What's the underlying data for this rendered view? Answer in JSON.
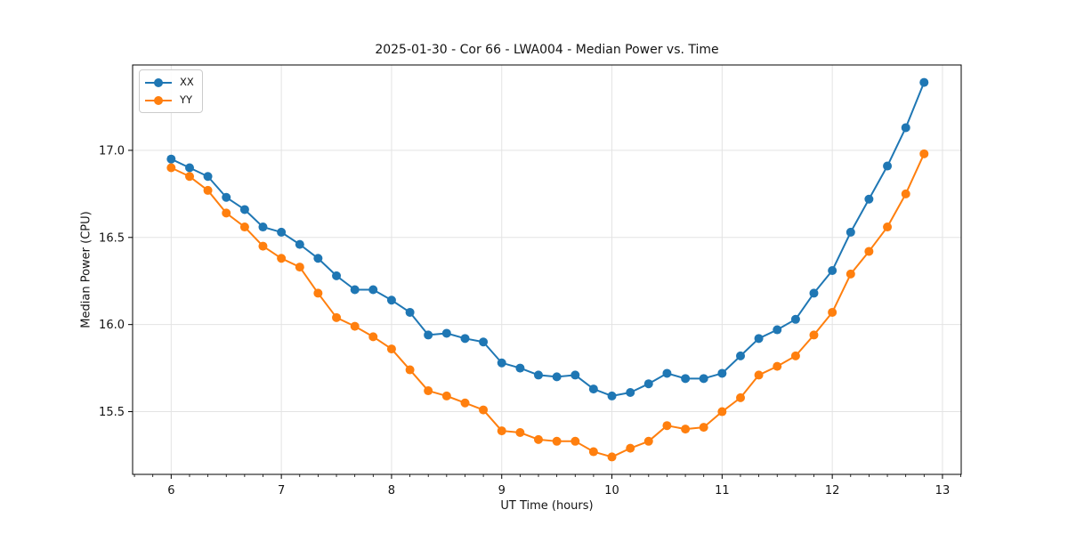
{
  "figure": {
    "title": "2025-01-30 - Cor 66 - LWA004 - Median Power vs. Time",
    "xlabel": "UT Time (hours)",
    "ylabel": "Median Power (CPU)"
  },
  "chart_data": {
    "type": "line",
    "title": "2025-01-30 - Cor 66 - LWA004 - Median Power vs. Time",
    "xlabel": "UT Time (hours)",
    "ylabel": "Median Power (CPU)",
    "xlim": [
      5.65,
      13.17
    ],
    "ylim": [
      15.14,
      17.49
    ],
    "xticks": [
      6,
      7,
      8,
      9,
      10,
      11,
      12,
      13
    ],
    "xtick_labels": [
      "6",
      "7",
      "8",
      "9",
      "10",
      "11",
      "12",
      "13"
    ],
    "yticks": [
      15.5,
      16.0,
      16.5,
      17.0
    ],
    "ytick_labels": [
      "15.5",
      "16.0",
      "16.5",
      "17.0"
    ],
    "x_minor_tick_interval": 0.16667,
    "grid": true,
    "legend": {
      "position": "upper left",
      "entries": [
        "XX",
        "YY"
      ]
    },
    "x": [
      6.0,
      6.167,
      6.333,
      6.5,
      6.667,
      6.833,
      7.0,
      7.167,
      7.333,
      7.5,
      7.667,
      7.833,
      8.0,
      8.167,
      8.333,
      8.5,
      8.667,
      8.833,
      9.0,
      9.167,
      9.333,
      9.5,
      9.667,
      9.833,
      10.0,
      10.167,
      10.333,
      10.5,
      10.667,
      10.833,
      11.0,
      11.167,
      11.333,
      11.5,
      11.667,
      11.833,
      12.0,
      12.167,
      12.333,
      12.5,
      12.667,
      12.833
    ],
    "series": [
      {
        "name": "XX",
        "color": "#1f77b4",
        "marker": "circle",
        "values": [
          16.95,
          16.9,
          16.85,
          16.73,
          16.66,
          16.56,
          16.53,
          16.46,
          16.38,
          16.28,
          16.2,
          16.2,
          16.14,
          16.07,
          15.94,
          15.95,
          15.92,
          15.9,
          15.78,
          15.75,
          15.71,
          15.7,
          15.71,
          15.63,
          15.59,
          15.61,
          15.66,
          15.72,
          15.69,
          15.69,
          15.72,
          15.82,
          15.92,
          15.97,
          16.03,
          16.18,
          16.31,
          16.53,
          16.72,
          16.91,
          17.13,
          17.39
        ]
      },
      {
        "name": "YY",
        "color": "#ff7f0e",
        "marker": "circle",
        "values": [
          16.9,
          16.85,
          16.77,
          16.64,
          16.56,
          16.45,
          16.38,
          16.33,
          16.18,
          16.04,
          15.99,
          15.93,
          15.86,
          15.74,
          15.62,
          15.59,
          15.55,
          15.51,
          15.39,
          15.38,
          15.34,
          15.33,
          15.33,
          15.27,
          15.24,
          15.29,
          15.33,
          15.42,
          15.4,
          15.41,
          15.5,
          15.58,
          15.71,
          15.76,
          15.82,
          15.94,
          16.07,
          16.29,
          16.42,
          16.56,
          16.75,
          16.98
        ]
      }
    ]
  },
  "style": {
    "series_blue": "#1f77b4",
    "series_orange": "#ff7f0e",
    "grid_color": "#e3e3e3",
    "spine_color": "#000000",
    "text_color": "#141414",
    "legend_border_color": "#cccccc",
    "background": "#ffffff"
  }
}
